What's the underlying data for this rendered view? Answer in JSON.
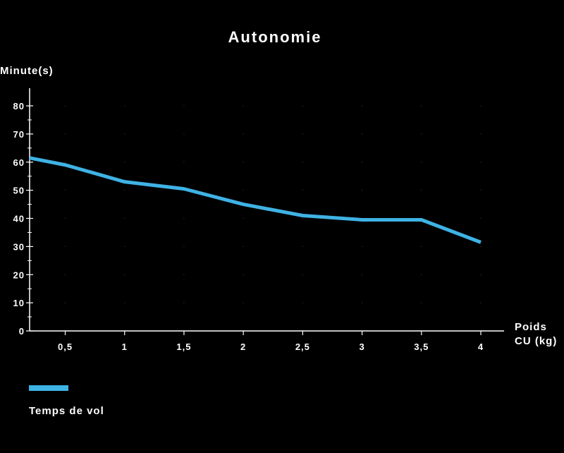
{
  "chart_data": {
    "type": "line",
    "title": "Autonomie",
    "ylabel": "Minute(s)",
    "xlabel_lines": [
      "Poids",
      "CU (kg)"
    ],
    "x": [
      0.2,
      0.5,
      1,
      1.5,
      2,
      2.5,
      3,
      3.5,
      4
    ],
    "x_ticks": [
      0.5,
      1,
      1.5,
      2,
      2.5,
      3,
      3.5,
      4
    ],
    "x_tick_labels": [
      "0,5",
      "1",
      "1,5",
      "2",
      "2,5",
      "3",
      "3,5",
      "4"
    ],
    "y_ticks": [
      0,
      10,
      20,
      30,
      40,
      50,
      60,
      70,
      80
    ],
    "y_tick_labels": [
      "0",
      "10",
      "20",
      "30",
      "40",
      "50",
      "60",
      "70",
      "80"
    ],
    "xlim": [
      0.2,
      4
    ],
    "ylim": [
      0,
      80
    ],
    "grid": "dotted",
    "legend_position": "bottom-left",
    "series": [
      {
        "name": "Temps de vol",
        "color": "#3fb2e4",
        "values": [
          61.5,
          59,
          53,
          50.5,
          45,
          41,
          39.5,
          39.5,
          31.5
        ]
      }
    ]
  }
}
